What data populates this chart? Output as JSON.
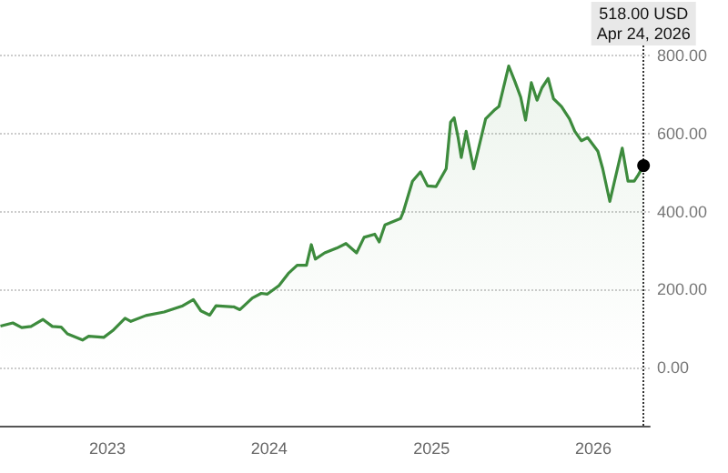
{
  "chart_data": {
    "type": "area",
    "color": "#3d8b3d",
    "grid": "y",
    "line_style": "solid",
    "marker": "none",
    "xlim": [
      "2022-05-04",
      "2026-05-08"
    ],
    "xticks": [
      "2023",
      "2024",
      "2025",
      "2026"
    ],
    "ylim": [
      -150,
      850
    ],
    "yticks": [
      {
        "value": 0,
        "label": "0.00"
      },
      {
        "value": 200,
        "label": "200.00"
      },
      {
        "value": 400,
        "label": "400.00"
      },
      {
        "value": 600,
        "label": "600.00"
      },
      {
        "value": 800,
        "label": "800.00"
      }
    ],
    "x": [
      "2022-05-05",
      "2022-06-02",
      "2022-06-22",
      "2022-07-13",
      "2022-08-09",
      "2022-08-30",
      "2022-09-19",
      "2022-10-03",
      "2022-11-06",
      "2022-11-20",
      "2022-12-24",
      "2023-01-13",
      "2023-02-10",
      "2023-02-23",
      "2023-03-29",
      "2023-05-09",
      "2023-06-20",
      "2023-07-14",
      "2023-07-31",
      "2023-08-20",
      "2023-09-03",
      "2023-10-14",
      "2023-10-27",
      "2023-11-24",
      "2023-12-14",
      "2023-12-28",
      "2024-01-23",
      "2024-02-13",
      "2024-03-04",
      "2024-03-25",
      "2024-04-05",
      "2024-04-14",
      "2024-05-05",
      "2024-06-01",
      "2024-06-22",
      "2024-07-16",
      "2024-08-02",
      "2024-08-26",
      "2024-09-05",
      "2024-09-18",
      "2024-10-23",
      "2024-10-29",
      "2024-11-19",
      "2024-12-07",
      "2024-12-23",
      "2025-01-11",
      "2025-02-03",
      "2025-02-13",
      "2025-02-21",
      "2025-03-02",
      "2025-03-09",
      "2025-03-20",
      "2025-04-06",
      "2025-05-03",
      "2025-05-24",
      "2025-06-02",
      "2025-06-24",
      "2025-07-08",
      "2025-07-21",
      "2025-08-01",
      "2025-08-14",
      "2025-08-27",
      "2025-09-07",
      "2025-09-21",
      "2025-10-03",
      "2025-10-21",
      "2025-11-08",
      "2025-11-20",
      "2025-12-05",
      "2025-12-19",
      "2026-01-11",
      "2026-01-22",
      "2026-02-07",
      "2026-03-07",
      "2026-03-20",
      "2026-04-03",
      "2026-04-12",
      "2026-04-24"
    ],
    "values": [
      106,
      114,
      102,
      105,
      123,
      105,
      103,
      86,
      70,
      80,
      77,
      94,
      126,
      118,
      133,
      142,
      158,
      174,
      145,
      134,
      158,
      155,
      148,
      178,
      190,
      188,
      210,
      241,
      262,
      262,
      315,
      278,
      294,
      306,
      318,
      294,
      334,
      342,
      322,
      366,
      382,
      398,
      478,
      502,
      466,
      464,
      510,
      630,
      641,
      590,
      539,
      606,
      510,
      638,
      662,
      670,
      774,
      734,
      694,
      635,
      731,
      686,
      718,
      742,
      690,
      670,
      638,
      606,
      582,
      590,
      555,
      510,
      426,
      563,
      478,
      478,
      494,
      518
    ],
    "ref_lines": [
      {
        "axis": "x",
        "value": "2026-04-24",
        "line_style": "dotted",
        "color": "#333333"
      }
    ],
    "annotations": [
      "518.00 USD\nApr 24, 2026"
    ]
  }
}
